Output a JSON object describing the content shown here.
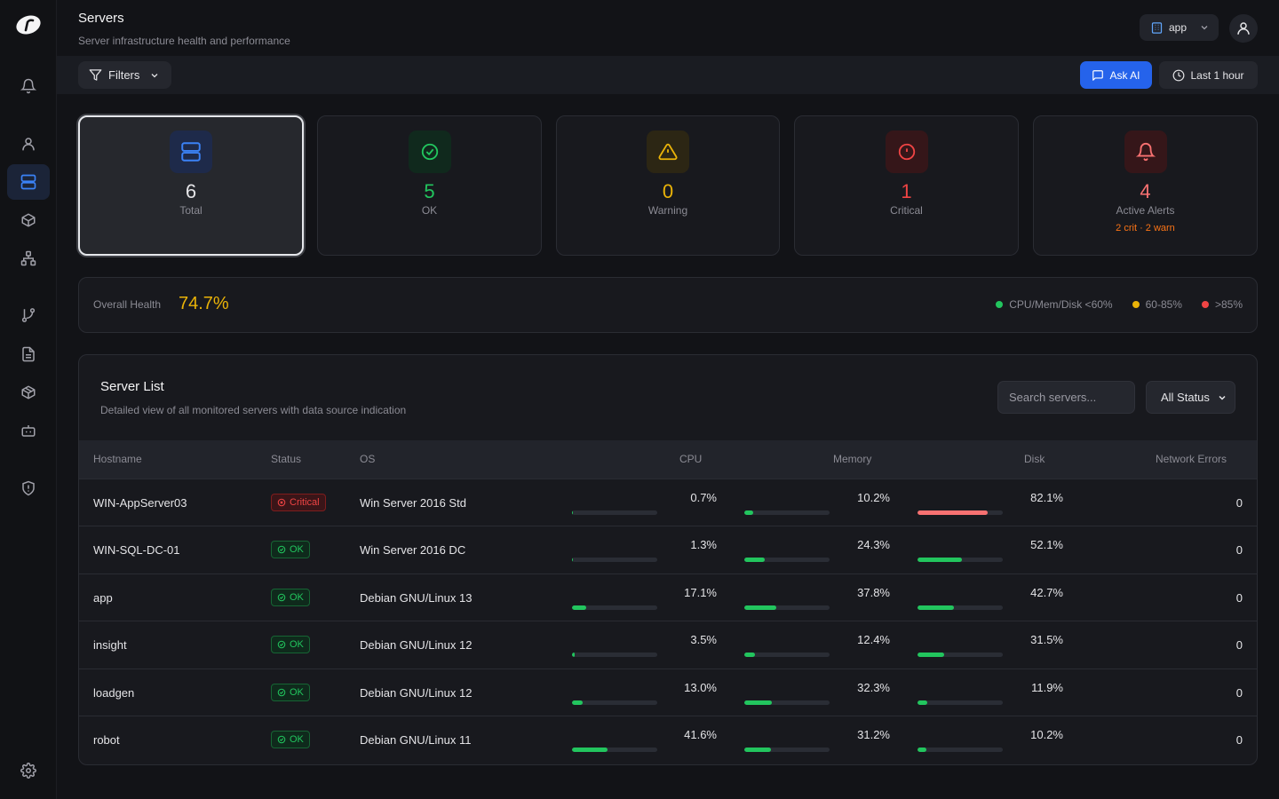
{
  "header": {
    "title": "Servers",
    "subtitle": "Server infrastructure health and performance",
    "app_select": "app"
  },
  "toolbar": {
    "filters_label": "Filters",
    "ask_ai_label": "Ask AI",
    "time_range_label": "Last 1 hour"
  },
  "sidebar": {
    "items": [
      "bell-icon",
      "user-icon",
      "servers-icon",
      "box-icon",
      "topology-icon",
      "git-branch-icon",
      "document-icon",
      "package-icon",
      "bot-icon",
      "shield-icon",
      "settings-icon"
    ],
    "active": "servers-icon"
  },
  "stats": [
    {
      "value": "6",
      "label": "Total",
      "color": "#e4e4e7",
      "icon": "server-icon"
    },
    {
      "value": "5",
      "label": "OK",
      "color": "#22c55e",
      "icon": "check-circle-icon"
    },
    {
      "value": "0",
      "label": "Warning",
      "color": "#eab308",
      "icon": "warning-icon"
    },
    {
      "value": "1",
      "label": "Critical",
      "color": "#ef4444",
      "icon": "alert-circle-icon"
    },
    {
      "value": "4",
      "label": "Active Alerts",
      "color": "#f87171",
      "icon": "bell-icon",
      "sub": "2 crit · 2 warn"
    }
  ],
  "health": {
    "label": "Overall Health",
    "value": "74.7%",
    "legend": [
      {
        "label": "CPU/Mem/Disk <60%",
        "color": "#22c55e"
      },
      {
        "label": "60-85%",
        "color": "#eab308"
      },
      {
        "label": ">85%",
        "color": "#ef4444"
      }
    ]
  },
  "server_list": {
    "title": "Server List",
    "subtitle": "Detailed view of all monitored servers with data source indication",
    "search_placeholder": "Search servers...",
    "status_filter": "All Status",
    "columns": [
      "Hostname",
      "Status",
      "OS",
      "CPU",
      "Memory",
      "Disk",
      "Network Errors"
    ],
    "rows": [
      {
        "hostname": "WIN-AppServer03",
        "status": "Critical",
        "os": "Win Server 2016 Std",
        "cpu": "0.7%",
        "cpu_pct": 0.7,
        "mem": "10.2%",
        "mem_pct": 10.2,
        "disk": "82.1%",
        "disk_pct": 82.1,
        "net_errors": "0"
      },
      {
        "hostname": "WIN-SQL-DC-01",
        "status": "OK",
        "os": "Win Server 2016 DC",
        "cpu": "1.3%",
        "cpu_pct": 1.3,
        "mem": "24.3%",
        "mem_pct": 24.3,
        "disk": "52.1%",
        "disk_pct": 52.1,
        "net_errors": "0"
      },
      {
        "hostname": "app",
        "status": "OK",
        "os": "Debian GNU/Linux 13",
        "cpu": "17.1%",
        "cpu_pct": 17.1,
        "mem": "37.8%",
        "mem_pct": 37.8,
        "disk": "42.7%",
        "disk_pct": 42.7,
        "net_errors": "0"
      },
      {
        "hostname": "insight",
        "status": "OK",
        "os": "Debian GNU/Linux 12",
        "cpu": "3.5%",
        "cpu_pct": 3.5,
        "mem": "12.4%",
        "mem_pct": 12.4,
        "disk": "31.5%",
        "disk_pct": 31.5,
        "net_errors": "0"
      },
      {
        "hostname": "loadgen",
        "status": "OK",
        "os": "Debian GNU/Linux 12",
        "cpu": "13.0%",
        "cpu_pct": 13.0,
        "mem": "32.3%",
        "mem_pct": 32.3,
        "disk": "11.9%",
        "disk_pct": 11.9,
        "net_errors": "0"
      },
      {
        "hostname": "robot",
        "status": "OK",
        "os": "Debian GNU/Linux 11",
        "cpu": "41.6%",
        "cpu_pct": 41.6,
        "mem": "31.2%",
        "mem_pct": 31.2,
        "disk": "10.2%",
        "disk_pct": 10.2,
        "net_errors": "0"
      }
    ]
  }
}
